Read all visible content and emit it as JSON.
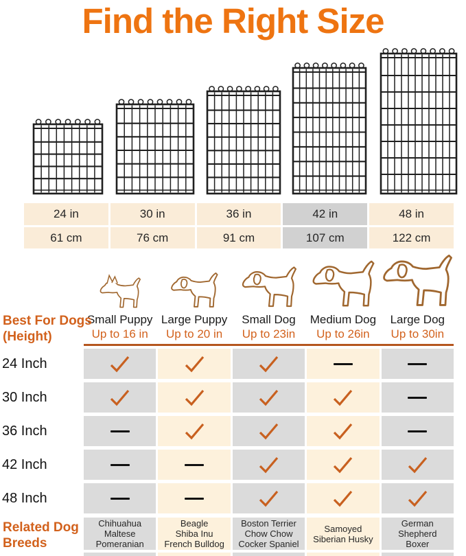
{
  "title": "Find the Right Size",
  "colors": {
    "accent": "#EE7411",
    "labelOrange": "#D2611C",
    "checkOrange": "#C8601F",
    "ruleBrown": "#B5561E",
    "tableCream": "#FAECD8",
    "tableGray": "#D1D1D1",
    "matrixCream": "#FDF1DC",
    "matrixGray": "#DBDBDB",
    "textDark": "#262626",
    "wireBlack": "#1F1F1F",
    "dogLine": "#A0672F"
  },
  "panels": [
    {
      "icon": "wire-panel-24in-icon"
    },
    {
      "icon": "wire-panel-30in-icon"
    },
    {
      "icon": "wire-panel-36in-icon"
    },
    {
      "icon": "wire-panel-42in-icon"
    },
    {
      "icon": "wire-panel-48in-icon"
    }
  ],
  "size_table": {
    "highlight_index": 3,
    "columns": [
      {
        "inches": "24 in",
        "cm": "61 cm"
      },
      {
        "inches": "30 in",
        "cm": "76 cm"
      },
      {
        "inches": "36 in",
        "cm": "91 cm"
      },
      {
        "inches": "42 in",
        "cm": "107 cm"
      },
      {
        "inches": "48 in",
        "cm": "122 cm"
      }
    ]
  },
  "best_for": {
    "header_line1": "Best For Dogs",
    "header_line2": "(Height)",
    "columns": [
      {
        "dog": "Small Puppy",
        "height": "Up to 16 in",
        "icon": "chihuahua-outline-icon"
      },
      {
        "dog": "Large Puppy",
        "height": "Up to 20 in",
        "icon": "large-puppy-outline-icon"
      },
      {
        "dog": "Small Dog",
        "height": "Up to 23in",
        "icon": "small-dog-outline-icon"
      },
      {
        "dog": "Medium Dog",
        "height": "Up to 26in",
        "icon": "medium-dog-outline-icon"
      },
      {
        "dog": "Large Dog",
        "height": "Up to 30in",
        "icon": "large-dog-outline-icon"
      }
    ]
  },
  "matrix": {
    "rows": [
      {
        "label": "24 Inch",
        "cells": [
          "check",
          "check",
          "check",
          "dash",
          "dash"
        ]
      },
      {
        "label": "30 Inch",
        "cells": [
          "check",
          "check",
          "check",
          "check",
          "dash"
        ]
      },
      {
        "label": "36 Inch",
        "cells": [
          "dash",
          "check",
          "check",
          "check",
          "dash"
        ]
      },
      {
        "label": "42 Inch",
        "cells": [
          "dash",
          "dash",
          "check",
          "check",
          "check"
        ]
      },
      {
        "label": "48 Inch",
        "cells": [
          "dash",
          "dash",
          "check",
          "check",
          "check"
        ]
      }
    ]
  },
  "related_breeds": {
    "header_line1": "Related Dog",
    "header_line2": "Breeds",
    "columns": [
      [
        "Chihuahua",
        "Maltese",
        "Pomeranian"
      ],
      [
        "Beagle",
        "Shiba Inu",
        "French Bulldog"
      ],
      [
        "Boston Terrier",
        "Chow Chow",
        "Cocker Spaniel"
      ],
      [
        "Samoyed",
        "Siberian Husky"
      ],
      [
        "German",
        "Shepherd",
        "Boxer"
      ]
    ]
  }
}
